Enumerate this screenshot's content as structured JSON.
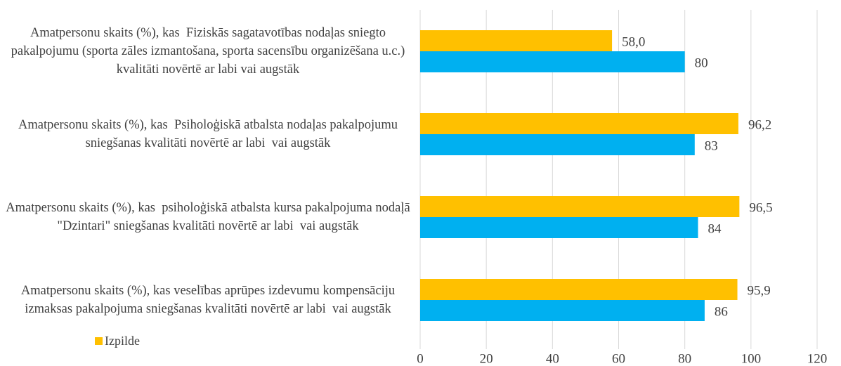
{
  "chart_data": {
    "type": "bar",
    "orientation": "horizontal",
    "categories": [
      "Amatpersonu skaits (%), kas  Fiziskās sagatavotības nodaļas sniegto pakalpojumu (sporta zāles izmantošana, sporta sacensību organizēšana u.c.) kvalitāti novērtē ar labi vai augstāk",
      "Amatpersonu skaits (%), kas  Psiholoģiskā atbalsta nodaļas pakalpojumu sniegšanas kvalitāti novērtē ar labi  vai augstāk",
      "Amatpersonu skaits (%), kas  psiholoģiskā atbalsta kursa pakalpojuma nodaļā \"Dzintari\" sniegšanas kvalitāti novērtē ar labi  vai augstāk",
      "Amatpersonu skaits (%), kas veselības aprūpes izdevumu kompensāciju izmaksas pakalpojuma sniegšanas kvalitāti novērtē ar labi  vai augstāk"
    ],
    "series": [
      {
        "name": "Izpilde",
        "color": "#FFC000",
        "values": [
          58.0,
          96.2,
          96.5,
          95.9
        ],
        "value_labels": [
          "58,0",
          "96,2",
          "96,5",
          "95,9"
        ]
      },
      {
        "color": "#00B0F0",
        "values": [
          80,
          83,
          84,
          86
        ]
      }
    ],
    "xlim": [
      0,
      120
    ],
    "xticks": [
      0,
      20,
      40,
      60,
      80,
      100,
      120
    ],
    "grid": true
  }
}
